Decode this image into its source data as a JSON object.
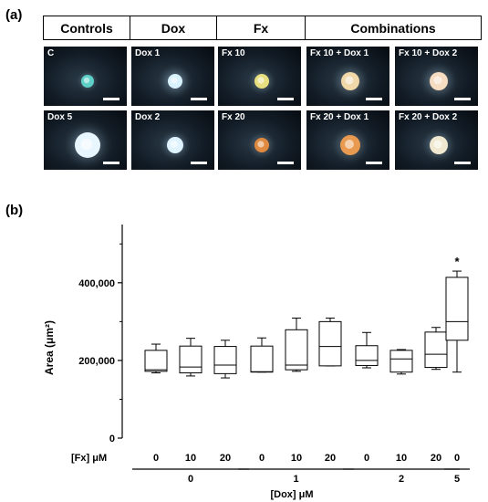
{
  "panel_a": {
    "tag": "(a)",
    "headers": [
      "Controls",
      "Dox",
      "Fx",
      "Combinations"
    ],
    "images": [
      {
        "label": "C",
        "color": "#5fd0c8"
      },
      {
        "label": "Dox 1",
        "color": "#d8f2ff"
      },
      {
        "label": "Fx 10",
        "color": "#e8e080"
      },
      {
        "label": "Fx 10 + Dox 1",
        "color": "#f0d8a8"
      },
      {
        "label": "Fx 10 + Dox 2",
        "color": "#f6dcc0"
      },
      {
        "label": "Dox 5",
        "color": "#e8f6ff"
      },
      {
        "label": "Dox 2",
        "color": "#dff4ff"
      },
      {
        "label": "Fx 20",
        "color": "#e08a40"
      },
      {
        "label": "Fx 20 + Dox 1",
        "color": "#e89a50"
      },
      {
        "label": "Fx 20 + Dox 2",
        "color": "#f0e8d0"
      }
    ]
  },
  "panel_b": {
    "tag": "(b)",
    "fx_row_label": "[Fx] μM",
    "dox_axis_label": "[Dox] μM"
  },
  "chart_data": {
    "type": "box",
    "ylabel": "Area (μm²)",
    "ylim": [
      0,
      550000
    ],
    "yticks": [
      0,
      200000,
      400000
    ],
    "ytick_labels": [
      "0",
      "200,000",
      "400,000"
    ],
    "x_fx_labels": [
      "0",
      "10",
      "20",
      "0",
      "10",
      "20",
      "0",
      "10",
      "20",
      "0"
    ],
    "dox_groups": [
      {
        "label": "0",
        "count": 3
      },
      {
        "label": "1",
        "count": 3
      },
      {
        "label": "2",
        "count": 3
      },
      {
        "label": "5",
        "count": 1
      }
    ],
    "boxes": [
      {
        "fx": "0",
        "dox": "0",
        "min": 168000,
        "q1": 172000,
        "median": 176000,
        "q3": 226000,
        "max": 242000
      },
      {
        "fx": "10",
        "dox": "0",
        "min": 160000,
        "q1": 168000,
        "median": 183000,
        "q3": 237000,
        "max": 257000
      },
      {
        "fx": "20",
        "dox": "0",
        "min": 155000,
        "q1": 166000,
        "median": 188000,
        "q3": 236000,
        "max": 252000
      },
      {
        "fx": "0",
        "dox": "1",
        "min": 170000,
        "q1": 170000,
        "median": 171000,
        "q3": 237000,
        "max": 258000
      },
      {
        "fx": "10",
        "dox": "1",
        "min": 172000,
        "q1": 176000,
        "median": 188000,
        "q3": 279000,
        "max": 309000
      },
      {
        "fx": "20",
        "dox": "1",
        "min": 186000,
        "q1": 186000,
        "median": 236000,
        "q3": 300000,
        "max": 309000
      },
      {
        "fx": "0",
        "dox": "2",
        "min": 181000,
        "q1": 187000,
        "median": 200000,
        "q3": 238000,
        "max": 272000
      },
      {
        "fx": "10",
        "dox": "2",
        "min": 165000,
        "q1": 170000,
        "median": 204000,
        "q3": 226000,
        "max": 228000
      },
      {
        "fx": "20",
        "dox": "2",
        "min": 177000,
        "q1": 182000,
        "median": 216000,
        "q3": 273000,
        "max": 285000
      },
      {
        "fx": "0",
        "dox": "5",
        "min": 170000,
        "q1": 252000,
        "median": 300000,
        "q3": 414000,
        "max": 430000
      }
    ],
    "annotations": [
      {
        "box_index": 9,
        "text": "*"
      }
    ]
  }
}
